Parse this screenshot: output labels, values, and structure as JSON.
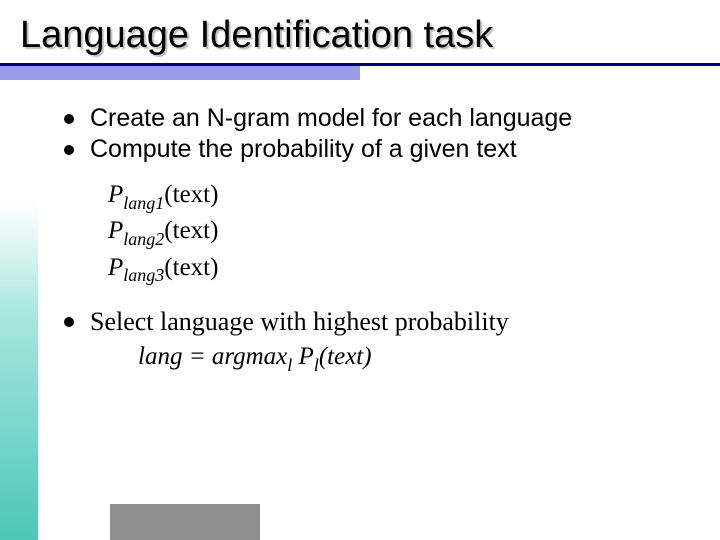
{
  "title": "Language Identification task",
  "bullets": {
    "b1": "Create an N-gram model for each language",
    "b2": "Compute the probability of a given text",
    "b3": "Select language with highest probability"
  },
  "formulas": {
    "p1_prefix": "P",
    "p1_sub": "lang1",
    "p1_suffix": "(text)",
    "p2_prefix": "P",
    "p2_sub": "lang2",
    "p2_suffix": "(text)",
    "p3_prefix": "P",
    "p3_sub": "lang3",
    "p3_suffix": "(text)",
    "eq_lhs": "lang = argmax",
    "eq_sub": "l",
    "eq_mid": " P",
    "eq_sub2": "l",
    "eq_suffix": "(text)"
  },
  "colors": {
    "rule": "#000080",
    "accent": "#9a9ae6",
    "footer": "#8f8f8f",
    "grad_start": "#ffffff",
    "grad_end": "#4cc7b8"
  }
}
